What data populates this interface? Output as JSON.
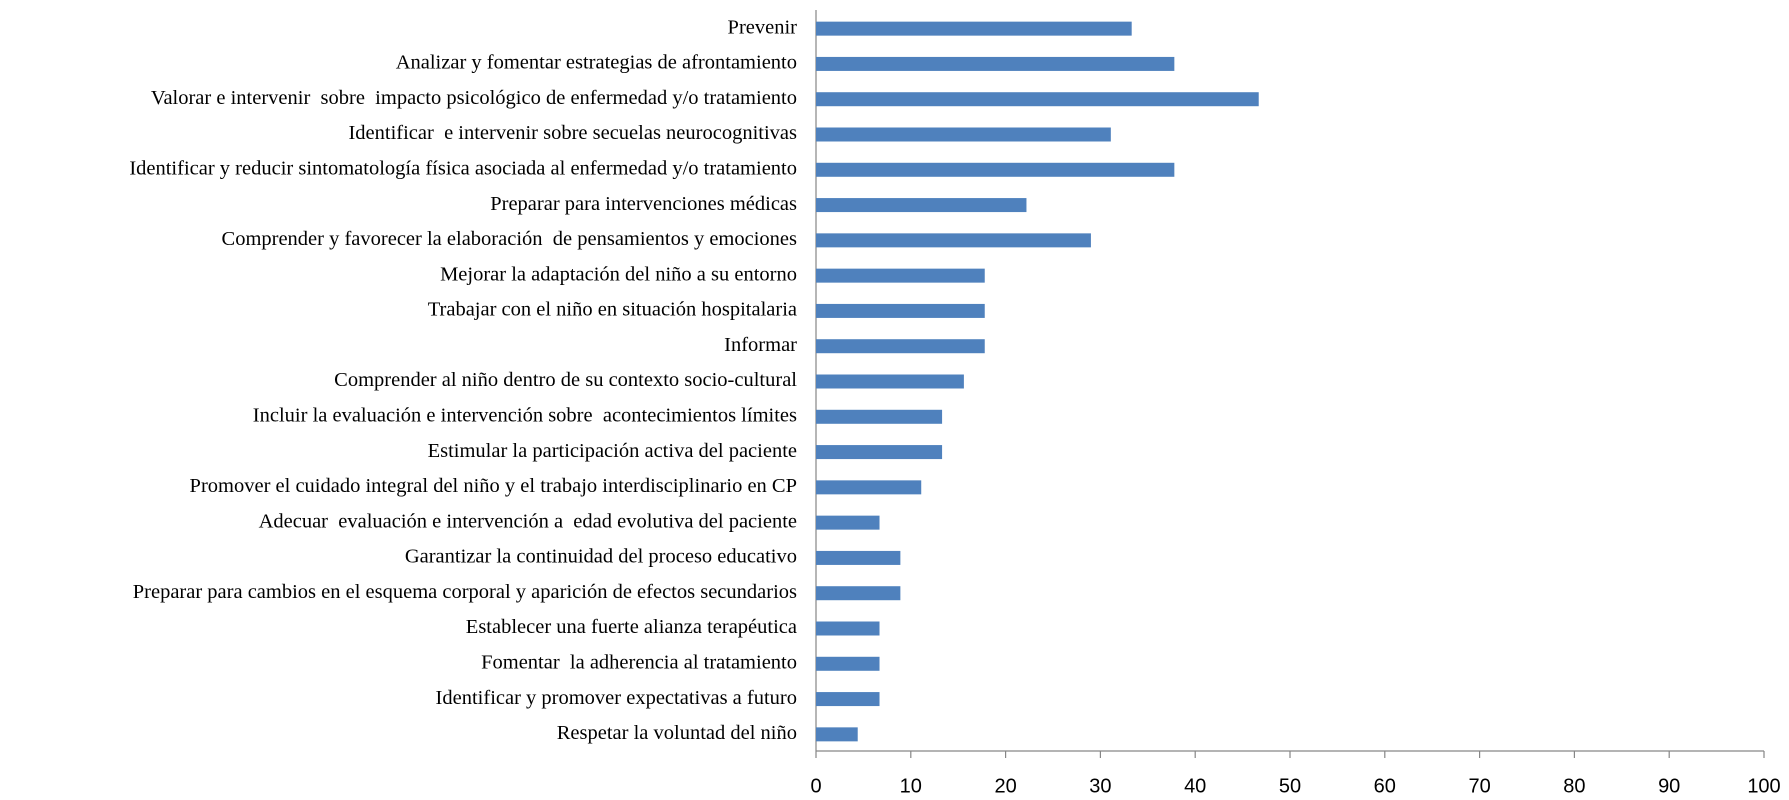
{
  "chart_data": {
    "type": "bar",
    "orientation": "horizontal",
    "categories": [
      "Prevenir",
      "Analizar y fomentar estrategias de afrontamiento",
      "Valorar e intervenir  sobre  impacto psicológico de enfermedad y/o tratamiento",
      "Identificar  e intervenir sobre secuelas neurocognitivas",
      "Identificar y reducir sintomatología física asociada al enfermedad y/o tratamiento",
      "Preparar para intervenciones médicas",
      "Comprender y favorecer la elaboración  de pensamientos y emociones",
      "Mejorar la adaptación del niño a su entorno",
      "Trabajar con el niño en situación hospitalaria",
      "Informar",
      "Comprender al niño dentro de su contexto socio-cultural",
      "Incluir la evaluación e intervención sobre  acontecimientos límites",
      "Estimular la participación activa del paciente",
      "Promover el cuidado integral del niño y el trabajo interdisciplinario en CP",
      "Adecuar  evaluación e intervención a  edad evolutiva del paciente",
      "Garantizar la continuidad del proceso educativo",
      "Preparar para cambios en el esquema corporal y aparición de efectos secundarios",
      "Establecer una fuerte alianza terapéutica",
      "Fomentar  la adherencia al tratamiento",
      "Identificar y promover expectativas a futuro",
      "Respetar la voluntad del niño"
    ],
    "values": [
      33.3,
      37.8,
      46.7,
      31.1,
      37.8,
      22.2,
      29,
      17.8,
      17.8,
      17.8,
      15.6,
      13.3,
      13.3,
      11.1,
      6.7,
      8.9,
      8.9,
      6.7,
      6.7,
      6.7,
      4.4
    ],
    "color": "#4f81bd",
    "xlim": [
      0,
      100
    ],
    "xticks": [
      0,
      10,
      20,
      30,
      40,
      50,
      60,
      70,
      80,
      90,
      100
    ]
  }
}
